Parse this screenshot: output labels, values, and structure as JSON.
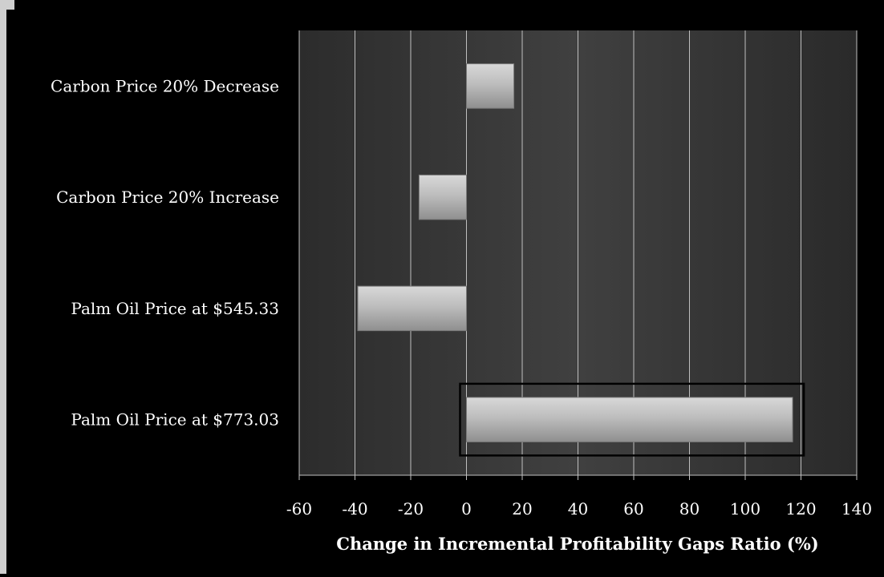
{
  "chart_data": {
    "type": "bar",
    "orientation": "horizontal",
    "title": "",
    "xlabel": "Change in Incremental Profitability  Gaps Ratio (%)",
    "ylabel": "",
    "categories": [
      "Carbon Price 20% Decrease",
      "Carbon Price 20% Increase",
      "Palm Oil  Price at $545.33",
      "Palm Oil  Price at $773.03"
    ],
    "values": [
      17,
      -17,
      -39,
      117
    ],
    "xlim": [
      -60,
      140
    ],
    "xticks": [
      "-60",
      "-40",
      "-20",
      "0",
      "20",
      "40",
      "60",
      "80",
      "100",
      "120",
      "140"
    ],
    "grid": "vertical",
    "legend": "none",
    "highlighted_category": "Palm Oil  Price at $773.03",
    "colors": {
      "background": "#000000",
      "plot_area": "#3a3a3a",
      "bar": "#c8c8c8",
      "grid": "#bfbfbf",
      "text": "#ffffff",
      "highlight_box": "#000000"
    }
  }
}
